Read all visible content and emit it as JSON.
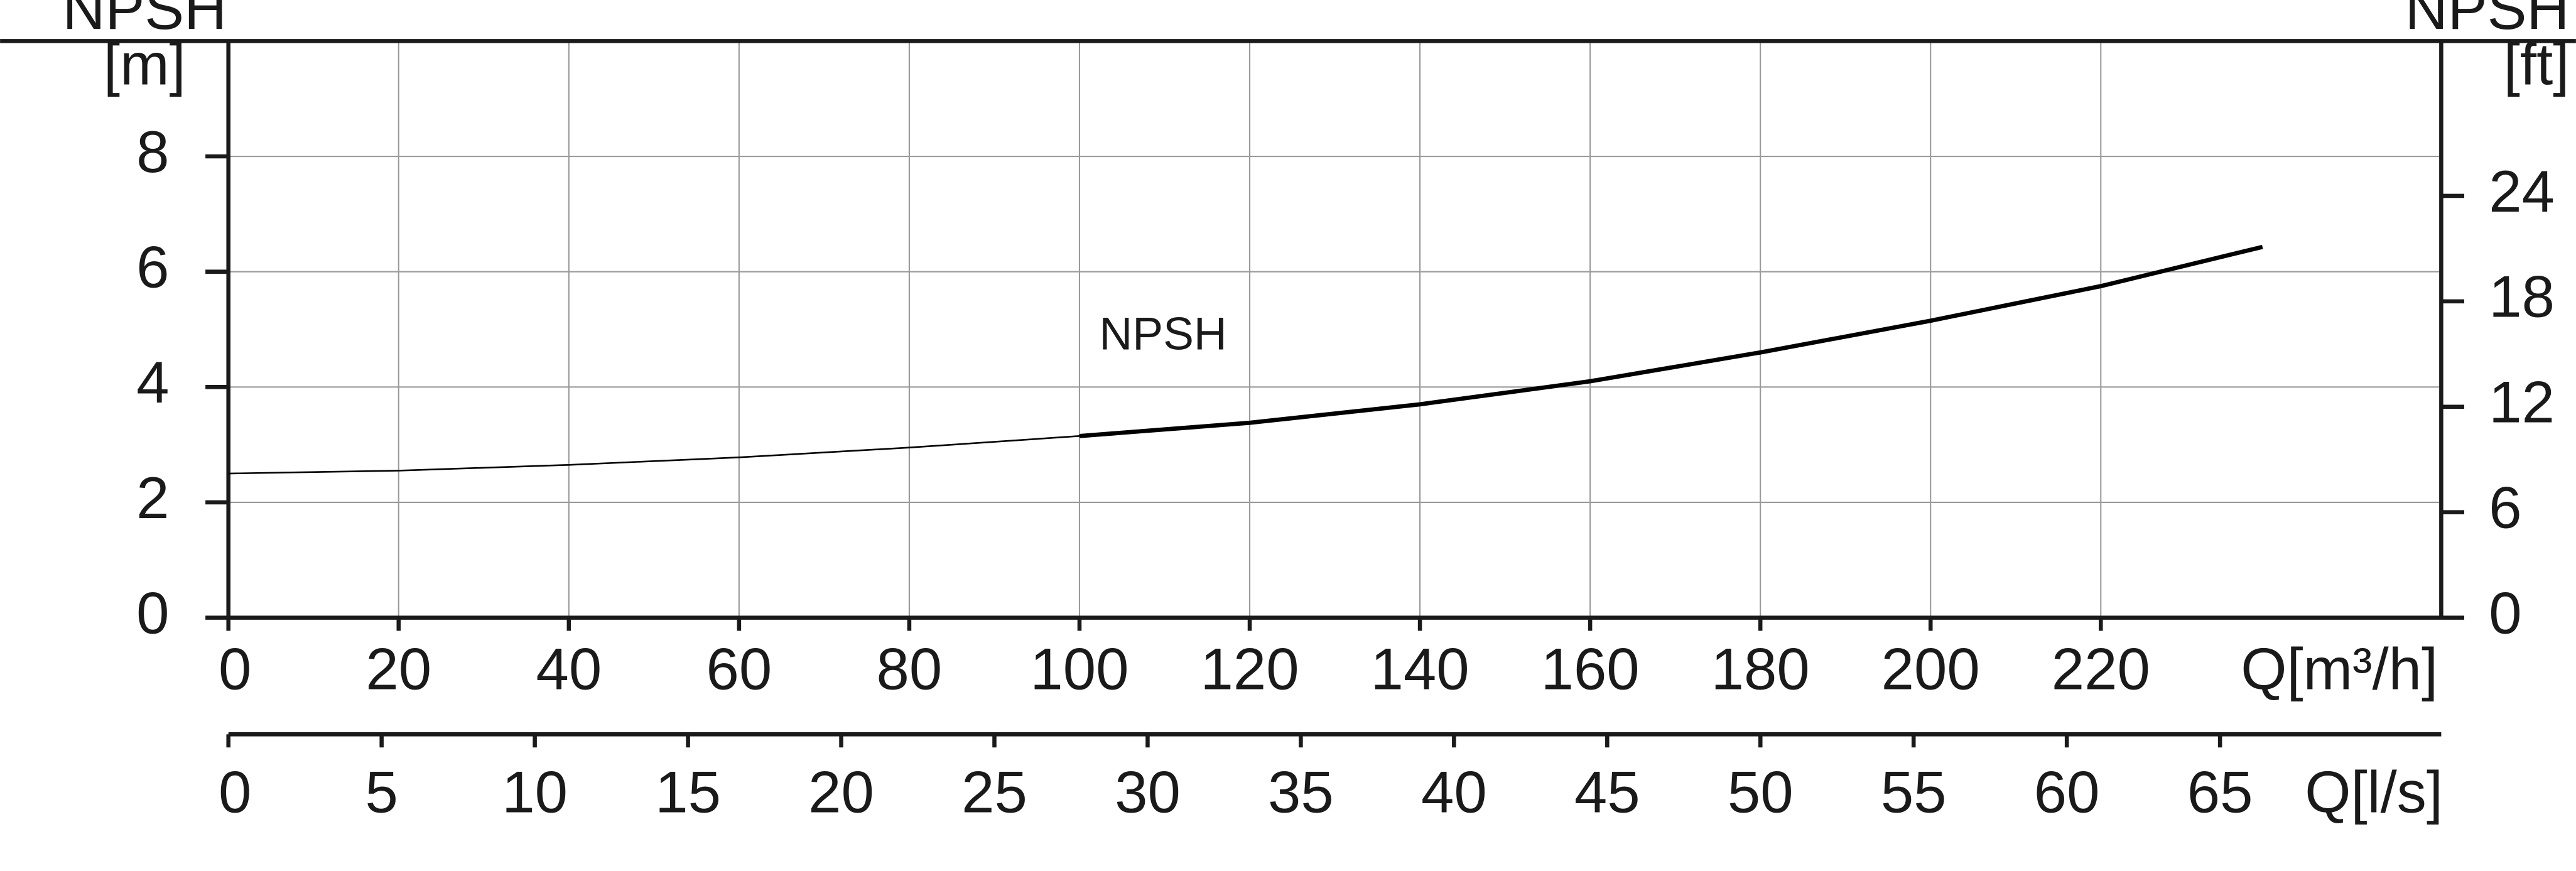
{
  "chart_data": {
    "type": "line",
    "y_label": "NPSH",
    "y_unit": "[m]",
    "y2_label": "NPSH",
    "y2_unit": "[ft]",
    "x_label": "Q[m³/h]",
    "x2_label": "Q[l/s]",
    "x": [
      0,
      20,
      40,
      60,
      80,
      100,
      120,
      140,
      160,
      180,
      200,
      220,
      239
    ],
    "series": [
      {
        "name": "NPSH",
        "color": "#000000",
        "values": [
          2.5,
          2.55,
          2.65,
          2.78,
          2.95,
          3.15,
          3.38,
          3.7,
          4.1,
          4.6,
          5.15,
          5.75,
          6.43
        ]
      }
    ],
    "xlim": [
      0,
      260
    ],
    "xticks": [
      0,
      20,
      40,
      60,
      80,
      100,
      120,
      140,
      160,
      180,
      200,
      220
    ],
    "x2lim": [
      0,
      72.22
    ],
    "x2ticks": [
      0,
      5,
      10,
      15,
      20,
      25,
      30,
      35,
      40,
      45,
      50,
      55,
      60,
      65
    ],
    "ylim": [
      0,
      10
    ],
    "yticks": [
      0,
      2,
      4,
      6,
      8
    ],
    "y2lim": [
      0,
      32.81
    ],
    "y2ticks": [
      0,
      6,
      12,
      18,
      24
    ],
    "grid": true
  }
}
